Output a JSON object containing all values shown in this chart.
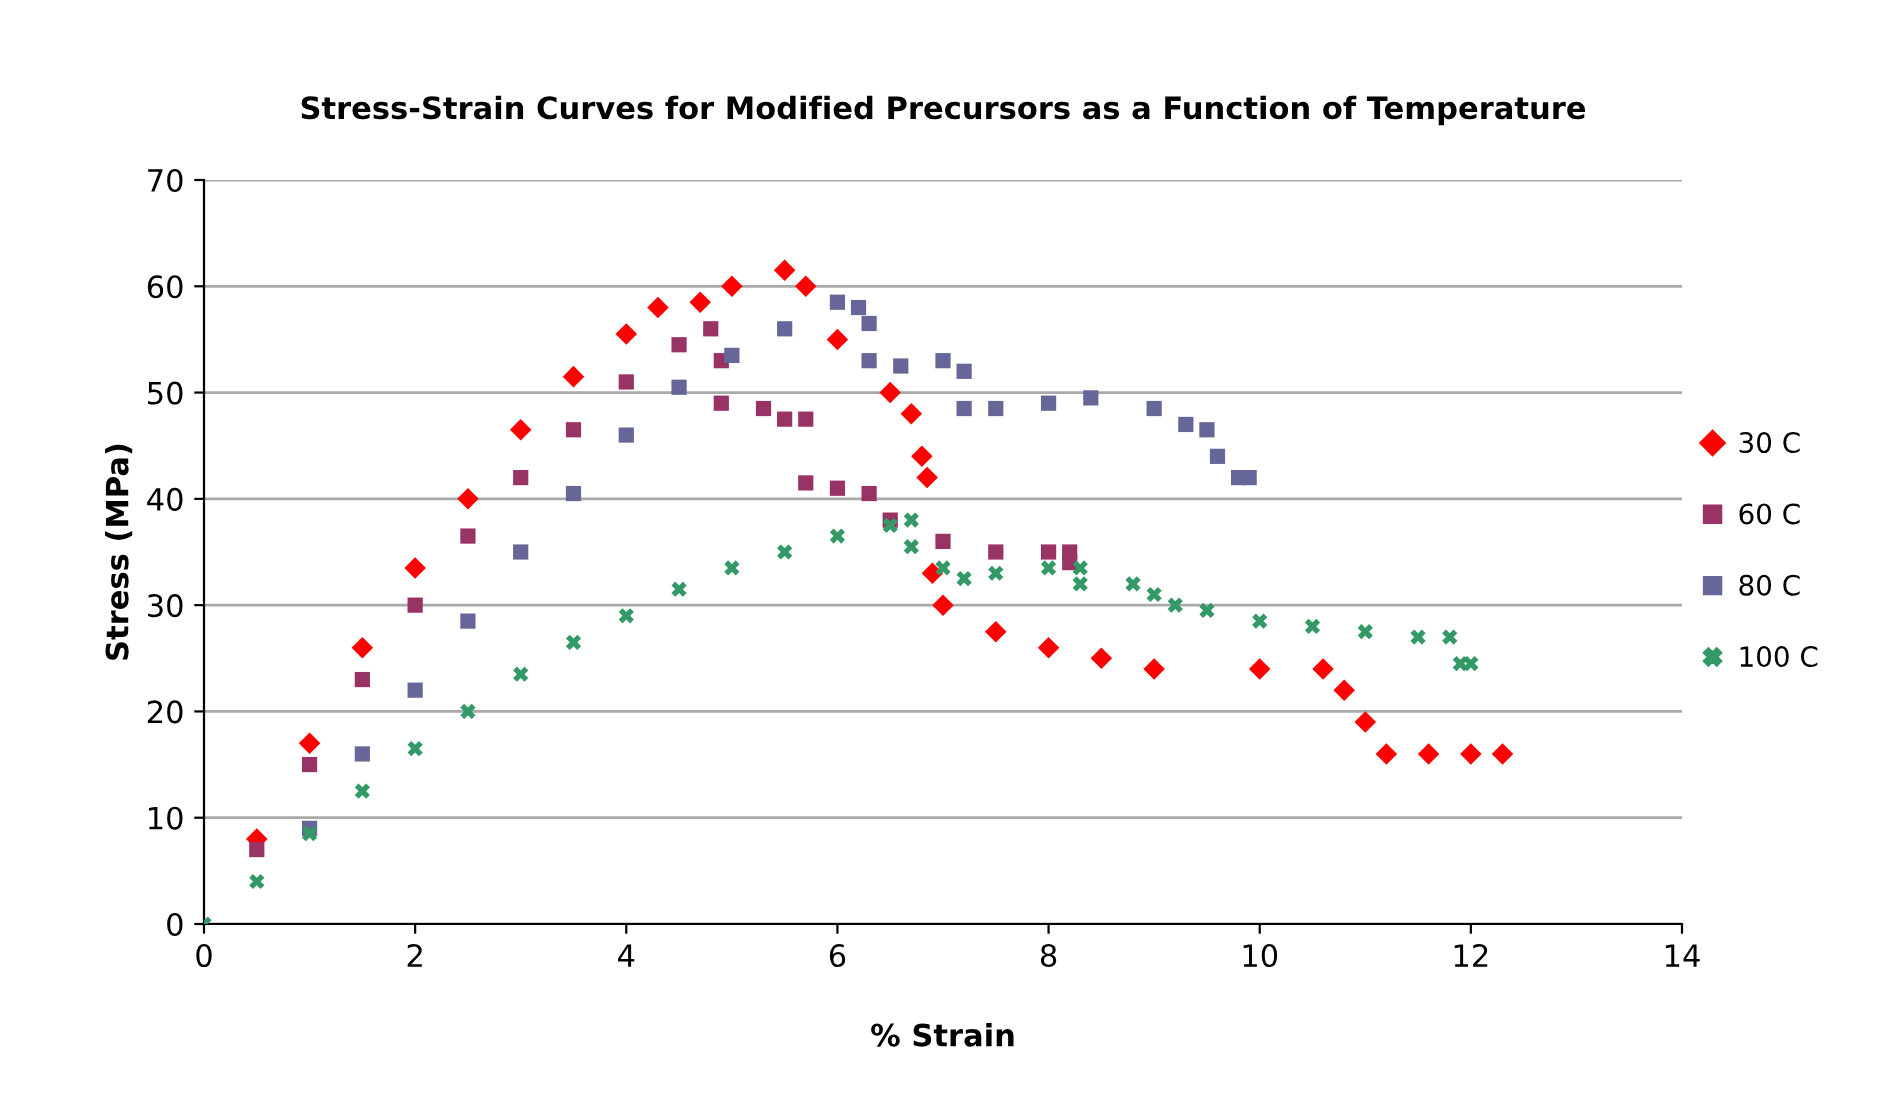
{
  "chart_data": {
    "type": "scatter",
    "title": "Stress-Strain Curves for Modified Precursors as a Function of Temperature",
    "xlabel": "% Strain",
    "ylabel": "Stress (MPa)",
    "xlim": [
      0,
      14
    ],
    "xticks": [
      0,
      2,
      4,
      6,
      8,
      10,
      12,
      14
    ],
    "ylim": [
      0,
      70
    ],
    "yticks": [
      0,
      10,
      20,
      30,
      40,
      50,
      60,
      70
    ],
    "grid": "y",
    "legend": "right",
    "series": [
      {
        "name": "30 C",
        "color": "#ff0000",
        "marker": "diamond",
        "x": [
          0.5,
          1,
          1.5,
          2,
          2.5,
          3,
          3.5,
          4,
          4.3,
          4.7,
          5,
          5.5,
          5.7,
          6,
          6.5,
          6.7,
          6.8,
          6.85,
          6.9,
          7,
          7.5,
          8,
          8.5,
          9,
          10,
          10.6,
          10.8,
          11,
          11.2,
          11.6,
          12,
          12.3
        ],
        "values": [
          8,
          17,
          26,
          33.5,
          40,
          46.5,
          51.5,
          55.5,
          58,
          58.5,
          60,
          61.5,
          60,
          55,
          50,
          48,
          44,
          42,
          33,
          30,
          27.5,
          26,
          25,
          24,
          24,
          24,
          22,
          19,
          16,
          16,
          16,
          16
        ]
      },
      {
        "name": "60 C",
        "color": "#993366",
        "marker": "square",
        "x": [
          0.5,
          1,
          1.5,
          2,
          2.5,
          3,
          3.5,
          4,
          4.5,
          4.8,
          4.9,
          4.9,
          5.3,
          5.5,
          5.7,
          5.7,
          6,
          6.3,
          6.5,
          7,
          7.5,
          8,
          8.2,
          8.2
        ],
        "values": [
          7,
          15,
          23,
          30,
          36.5,
          42,
          46.5,
          51,
          54.5,
          56,
          53,
          49,
          48.5,
          47.5,
          47.5,
          41.5,
          41,
          40.5,
          38,
          36,
          35,
          35,
          35,
          34
        ]
      },
      {
        "name": "80 C",
        "color": "#666699",
        "marker": "square",
        "x": [
          1,
          1.5,
          2,
          2.5,
          3,
          3.5,
          4,
          4.5,
          5,
          5.5,
          6,
          6.2,
          6.3,
          6.3,
          6.6,
          7,
          7.2,
          7.2,
          7.5,
          8,
          8.4,
          9,
          9.3,
          9.5,
          9.6,
          9.8,
          9.9
        ],
        "values": [
          9,
          16,
          22,
          28.5,
          35,
          40.5,
          46,
          50.5,
          53.5,
          56,
          58.5,
          58,
          56.5,
          53,
          52.5,
          53,
          52,
          48.5,
          48.5,
          49,
          49.5,
          48.5,
          47,
          46.5,
          44,
          42,
          42
        ]
      },
      {
        "name": "100 C",
        "color": "#339966",
        "marker": "cross",
        "x": [
          0,
          0.5,
          1,
          1.5,
          2,
          2.5,
          3,
          3.5,
          4,
          4.5,
          5,
          5.5,
          6,
          6.5,
          6.7,
          6.7,
          7,
          7.2,
          7.5,
          8,
          8.3,
          8.3,
          8.8,
          9,
          9.2,
          9.5,
          10,
          10.5,
          11,
          11.5,
          11.8,
          11.9,
          12
        ],
        "values": [
          0,
          4,
          8.5,
          12.5,
          16.5,
          20,
          23.5,
          26.5,
          29,
          31.5,
          33.5,
          35,
          36.5,
          37.5,
          38,
          35.5,
          33.5,
          32.5,
          33,
          33.5,
          33.5,
          32,
          32,
          31,
          30,
          29.5,
          28.5,
          28,
          27.5,
          27,
          27,
          24.5,
          24.5
        ]
      }
    ]
  }
}
